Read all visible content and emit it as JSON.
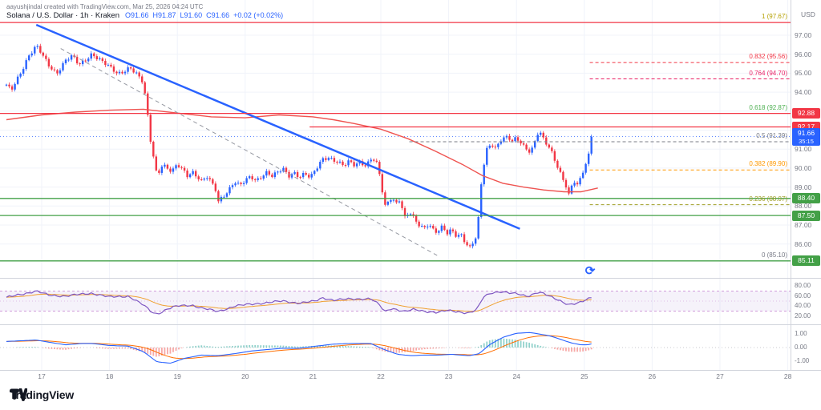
{
  "attribution": "aayushjindal created with TradingView.com, Mar 25, 2026 04:24 UTC",
  "legend": {
    "title": "Solana / U.S. Dollar · 1h · Kraken",
    "values": [
      "O91.66",
      "H91.87",
      "L91.60",
      "C91.66",
      "+0.02 (+0.02%)"
    ]
  },
  "price_axis": {
    "currency": "USD",
    "ticks": [
      "97.00",
      "96.00",
      "95.00",
      "94.00",
      "93.00",
      "92.00",
      "91.00",
      "90.00",
      "89.00",
      "88.00",
      "87.00",
      "86.00"
    ],
    "badges": [
      {
        "text": "92.88",
        "price": 92.88,
        "color": "#f23645"
      },
      {
        "text": "92.17",
        "price": 92.17,
        "color": "#f23645"
      },
      {
        "text": "91.66",
        "sub": "35:15",
        "price": 91.66,
        "color": "#2962ff"
      },
      {
        "text": "88.40",
        "price": 88.4,
        "color": "#43a047"
      },
      {
        "text": "87.50",
        "price": 87.5,
        "color": "#43a047"
      },
      {
        "text": "85.11",
        "price": 85.11,
        "color": "#43a047"
      }
    ]
  },
  "time_axis": {
    "labels": [
      "17",
      "18",
      "19",
      "20",
      "21",
      "22",
      "23",
      "24",
      "25",
      "26",
      "27",
      "28"
    ]
  },
  "icons": {
    "sync": "⟳"
  },
  "logo": {
    "text": "TradingView"
  },
  "chart_data": {
    "type": "candlestick",
    "title": "Solana / U.S. Dollar · 1h · Kraken",
    "interval": "1h",
    "exchange": "Kraken",
    "last_candle": {
      "open": 91.66,
      "high": 91.87,
      "low": 91.6,
      "close": 91.66,
      "change": "+0.02 (+0.02%)"
    },
    "up_color": "#2962ff",
    "down_color": "#f23645",
    "ylim": [
      84.3,
      98.1
    ],
    "price_ticks": [
      97,
      96,
      95,
      94,
      93,
      92,
      91,
      90,
      89,
      88,
      87,
      86
    ],
    "day_ticks": [
      17,
      18,
      19,
      20,
      21,
      22,
      23,
      24,
      25,
      26,
      27,
      28
    ],
    "price_path": [
      [
        16.48,
        94.35
      ],
      [
        16.55,
        94.05
      ],
      [
        16.62,
        94.55
      ],
      [
        16.7,
        95.1
      ],
      [
        16.8,
        95.9
      ],
      [
        16.92,
        96.45
      ],
      [
        17.0,
        96.0
      ],
      [
        17.1,
        95.4
      ],
      [
        17.22,
        95.0
      ],
      [
        17.35,
        95.7
      ],
      [
        17.45,
        95.9
      ],
      [
        17.55,
        95.4
      ],
      [
        17.65,
        95.7
      ],
      [
        17.74,
        96.05
      ],
      [
        17.85,
        95.75
      ],
      [
        17.95,
        95.45
      ],
      [
        18.05,
        95.15
      ],
      [
        18.12,
        94.95
      ],
      [
        18.2,
        95.1
      ],
      [
        18.3,
        95.35
      ],
      [
        18.4,
        94.95
      ],
      [
        18.5,
        94.45
      ],
      [
        18.56,
        92.8
      ],
      [
        18.61,
        91.3
      ],
      [
        18.66,
        90.4
      ],
      [
        18.7,
        89.6
      ],
      [
        18.78,
        90.25
      ],
      [
        18.85,
        90.0
      ],
      [
        18.92,
        89.8
      ],
      [
        19.0,
        90.15
      ],
      [
        19.08,
        89.9
      ],
      [
        19.15,
        89.6
      ],
      [
        19.22,
        89.85
      ],
      [
        19.3,
        89.55
      ],
      [
        19.36,
        89.3
      ],
      [
        19.43,
        89.55
      ],
      [
        19.5,
        89.2
      ],
      [
        19.56,
        88.9
      ],
      [
        19.6,
        88.2
      ],
      [
        19.66,
        88.5
      ],
      [
        19.73,
        88.75
      ],
      [
        19.8,
        89.1
      ],
      [
        19.84,
        89.3
      ],
      [
        19.92,
        89.05
      ],
      [
        20.0,
        89.3
      ],
      [
        20.08,
        89.55
      ],
      [
        20.16,
        89.35
      ],
      [
        20.24,
        89.6
      ],
      [
        20.32,
        89.8
      ],
      [
        20.4,
        89.55
      ],
      [
        20.48,
        89.75
      ],
      [
        20.56,
        89.95
      ],
      [
        20.64,
        89.6
      ],
      [
        20.72,
        89.8
      ],
      [
        20.8,
        89.55
      ],
      [
        20.88,
        89.7
      ],
      [
        20.96,
        89.45
      ],
      [
        21.04,
        89.9
      ],
      [
        21.14,
        90.5
      ],
      [
        21.22,
        90.6
      ],
      [
        21.3,
        90.45
      ],
      [
        21.38,
        90.25
      ],
      [
        21.46,
        90.1
      ],
      [
        21.54,
        90.35
      ],
      [
        21.62,
        90.15
      ],
      [
        21.7,
        90.4
      ],
      [
        21.78,
        90.1
      ],
      [
        21.85,
        90.5
      ],
      [
        21.93,
        90.3
      ],
      [
        22.0,
        89.4
      ],
      [
        22.05,
        87.9
      ],
      [
        22.1,
        88.2
      ],
      [
        22.16,
        88.5
      ],
      [
        22.22,
        88.15
      ],
      [
        22.28,
        88.4
      ],
      [
        22.35,
        87.35
      ],
      [
        22.42,
        87.65
      ],
      [
        22.49,
        87.3
      ],
      [
        22.56,
        87.0
      ],
      [
        22.63,
        86.85
      ],
      [
        22.7,
        87.1
      ],
      [
        22.77,
        86.8
      ],
      [
        22.84,
        86.6
      ],
      [
        22.91,
        86.9
      ],
      [
        22.98,
        86.5
      ],
      [
        23.05,
        86.75
      ],
      [
        23.12,
        86.4
      ],
      [
        23.19,
        86.55
      ],
      [
        23.26,
        86.0
      ],
      [
        23.3,
        85.75
      ],
      [
        23.36,
        86.1
      ],
      [
        23.42,
        86.35
      ],
      [
        23.47,
        88.9
      ],
      [
        23.51,
        89.9
      ],
      [
        23.55,
        90.9
      ],
      [
        23.6,
        91.2
      ],
      [
        23.63,
        91.35
      ],
      [
        23.68,
        91.05
      ],
      [
        23.73,
        91.3
      ],
      [
        23.78,
        91.55
      ],
      [
        23.83,
        91.6
      ],
      [
        23.88,
        91.6
      ],
      [
        23.93,
        91.35
      ],
      [
        23.98,
        91.5
      ],
      [
        24.04,
        91.45
      ],
      [
        24.1,
        91.2
      ],
      [
        24.16,
        91.0
      ],
      [
        24.21,
        90.9
      ],
      [
        24.26,
        91.3
      ],
      [
        24.3,
        91.7
      ],
      [
        24.33,
        92.0
      ],
      [
        24.38,
        91.6
      ],
      [
        24.43,
        91.3
      ],
      [
        24.48,
        91.05
      ],
      [
        24.52,
        90.8
      ],
      [
        24.58,
        90.3
      ],
      [
        24.63,
        89.9
      ],
      [
        24.68,
        89.5
      ],
      [
        24.73,
        89.1
      ],
      [
        24.77,
        88.6
      ],
      [
        24.82,
        89.1
      ],
      [
        24.85,
        89.3
      ],
      [
        24.9,
        89.05
      ],
      [
        24.95,
        89.45
      ],
      [
        24.99,
        89.9
      ],
      [
        25.04,
        90.4
      ],
      [
        25.08,
        90.9
      ],
      [
        25.13,
        91.66
      ]
    ],
    "ma": {
      "color": "#ef5350",
      "points": [
        [
          16.48,
          92.55
        ],
        [
          17.0,
          92.8
        ],
        [
          17.5,
          92.95
        ],
        [
          18.0,
          93.05
        ],
        [
          18.5,
          93.1
        ],
        [
          19.0,
          92.9
        ],
        [
          19.5,
          92.7
        ],
        [
          20.0,
          92.65
        ],
        [
          20.5,
          92.8
        ],
        [
          21.0,
          92.7
        ],
        [
          21.3,
          92.55
        ],
        [
          21.6,
          92.35
        ],
        [
          22.0,
          92.05
        ],
        [
          22.4,
          91.55
        ],
        [
          22.8,
          90.9
        ],
        [
          23.2,
          90.2
        ],
        [
          23.5,
          89.6
        ],
        [
          23.8,
          89.2
        ],
        [
          24.1,
          89.0
        ],
        [
          24.4,
          88.85
        ],
        [
          24.7,
          88.75
        ],
        [
          24.95,
          88.75
        ],
        [
          25.2,
          88.95
        ]
      ]
    },
    "trendlines": [
      {
        "name": "downtrend-line",
        "from": [
          16.92,
          97.55
        ],
        "to": [
          24.05,
          86.8
        ],
        "color": "#2962ff",
        "width": 2.5,
        "style": "solid"
      },
      {
        "name": "inner-trendline",
        "from": [
          17.28,
          96.3
        ],
        "to": [
          22.83,
          85.4
        ],
        "color": "#9598a1",
        "width": 1,
        "style": "dashed"
      }
    ],
    "levels": [
      {
        "price": 97.67,
        "color": "#f23645",
        "from": null
      },
      {
        "price": 92.88,
        "color": "#f23645",
        "from": null
      },
      {
        "price": 92.17,
        "color": "#f23645",
        "from": 20.95
      },
      {
        "price": 88.4,
        "color": "#43a047",
        "from": null
      },
      {
        "price": 87.5,
        "color": "#43a047",
        "from": null
      },
      {
        "price": 85.11,
        "color": "#43a047",
        "from": null
      }
    ],
    "last_price_line": {
      "price": 91.66,
      "color": "#2962ff"
    },
    "fib_retracement": {
      "high": 97.67,
      "low": 85.1,
      "levels": [
        {
          "label": "1 (97.67)",
          "price": 97.67,
          "color": "#b5a000",
          "line": false,
          "from": 25.08
        },
        {
          "label": "0.832 (95.56)",
          "price": 95.56,
          "color": "#f23645",
          "line": true,
          "from": 25.08
        },
        {
          "label": "0.764 (94.70)",
          "price": 94.7,
          "color": "#e91e63",
          "line": true,
          "from": 25.08
        },
        {
          "label": "0.618 (92.87)",
          "price": 92.87,
          "color": "#4caf50",
          "line": false,
          "from": 25.08
        },
        {
          "label": "0.5 (91.39)",
          "price": 91.39,
          "color": "#787b86",
          "line": true,
          "from": 22.42
        },
        {
          "label": "0.382 (89.90)",
          "price": 89.9,
          "color": "#ff9800",
          "line": true,
          "from": 25.08
        },
        {
          "label": "0.236 (88.07)",
          "price": 88.07,
          "color": "#9e9d24",
          "line": true,
          "from": 25.08
        },
        {
          "label": "0 (85.10)",
          "price": 85.1,
          "color": "#787b86",
          "line": false,
          "from": 25.08
        }
      ]
    },
    "indicators": {
      "rsi": {
        "color": "#7e57c2",
        "ma_color": "#f0a030",
        "band": [
          70,
          30
        ],
        "middle": 50,
        "ticks": [
          80,
          60,
          40,
          20
        ],
        "points": [
          [
            16.48,
            57
          ],
          [
            16.7,
            64
          ],
          [
            16.92,
            70
          ],
          [
            17.1,
            62
          ],
          [
            17.35,
            60
          ],
          [
            17.6,
            64
          ],
          [
            17.74,
            66
          ],
          [
            18.0,
            58
          ],
          [
            18.28,
            60
          ],
          [
            18.5,
            42
          ],
          [
            18.62,
            28
          ],
          [
            18.7,
            24
          ],
          [
            18.85,
            34
          ],
          [
            19.0,
            40
          ],
          [
            19.22,
            42
          ],
          [
            19.36,
            36
          ],
          [
            19.6,
            29
          ],
          [
            19.84,
            40
          ],
          [
            20.1,
            44
          ],
          [
            20.32,
            47
          ],
          [
            20.56,
            50
          ],
          [
            20.8,
            46
          ],
          [
            21.04,
            50
          ],
          [
            21.14,
            57
          ],
          [
            21.3,
            52
          ],
          [
            21.54,
            54
          ],
          [
            21.85,
            55
          ],
          [
            22.0,
            40
          ],
          [
            22.05,
            28
          ],
          [
            22.16,
            36
          ],
          [
            22.35,
            29
          ],
          [
            22.49,
            33
          ],
          [
            22.63,
            30
          ],
          [
            22.84,
            27
          ],
          [
            22.98,
            31
          ],
          [
            23.12,
            29
          ],
          [
            23.3,
            26
          ],
          [
            23.42,
            33
          ],
          [
            23.51,
            58
          ],
          [
            23.63,
            67
          ],
          [
            23.78,
            69
          ],
          [
            23.88,
            66
          ],
          [
            24.04,
            64
          ],
          [
            24.16,
            60
          ],
          [
            24.33,
            68
          ],
          [
            24.48,
            60
          ],
          [
            24.63,
            52
          ],
          [
            24.77,
            43
          ],
          [
            24.9,
            45
          ],
          [
            24.99,
            50
          ],
          [
            25.13,
            60
          ]
        ]
      },
      "macd": {
        "macd_color": "#2962ff",
        "signal_color": "#ff6d00",
        "hist_up": "#26a69a",
        "hist_down": "#ef5350",
        "ticks": [
          1,
          0,
          -1
        ],
        "points": [
          [
            16.48,
            0.45
          ],
          [
            16.7,
            0.5
          ],
          [
            16.92,
            0.55
          ],
          [
            17.1,
            0.4
          ],
          [
            17.35,
            0.2
          ],
          [
            17.6,
            0.3
          ],
          [
            17.74,
            0.3
          ],
          [
            18.0,
            0.15
          ],
          [
            18.28,
            0.1
          ],
          [
            18.5,
            -0.3
          ],
          [
            18.7,
            -1.05
          ],
          [
            18.9,
            -1.15
          ],
          [
            19.1,
            -0.8
          ],
          [
            19.36,
            -0.55
          ],
          [
            19.6,
            -0.6
          ],
          [
            19.84,
            -0.45
          ],
          [
            20.1,
            -0.25
          ],
          [
            20.32,
            -0.15
          ],
          [
            20.56,
            -0.05
          ],
          [
            20.8,
            -0.05
          ],
          [
            21.04,
            0.1
          ],
          [
            21.3,
            0.25
          ],
          [
            21.54,
            0.3
          ],
          [
            21.85,
            0.3
          ],
          [
            22.05,
            -0.15
          ],
          [
            22.25,
            -0.5
          ],
          [
            22.45,
            -0.6
          ],
          [
            22.65,
            -0.55
          ],
          [
            22.85,
            -0.55
          ],
          [
            23.05,
            -0.5
          ],
          [
            23.3,
            -0.6
          ],
          [
            23.45,
            -0.45
          ],
          [
            23.6,
            0.2
          ],
          [
            23.8,
            0.75
          ],
          [
            24.0,
            1.05
          ],
          [
            24.2,
            1.1
          ],
          [
            24.33,
            1.0
          ],
          [
            24.5,
            0.85
          ],
          [
            24.65,
            0.6
          ],
          [
            24.8,
            0.35
          ],
          [
            24.95,
            0.2
          ],
          [
            25.05,
            0.2
          ],
          [
            25.13,
            0.3
          ]
        ]
      }
    }
  }
}
